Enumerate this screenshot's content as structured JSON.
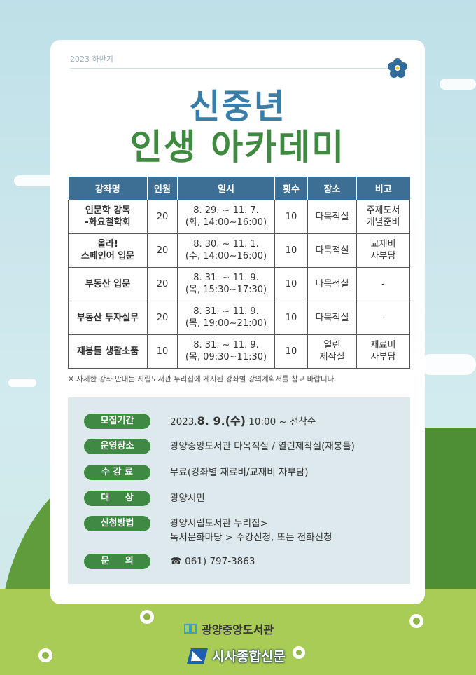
{
  "header": {
    "subtitle": "2023 하반기",
    "title_line1": "신중년",
    "title_line2": "인생 아카데미"
  },
  "colors": {
    "title_blue": "#3a7ea8",
    "title_green": "#3f8a40",
    "table_header": "#3d6f94",
    "pill_green": "#3e8a42",
    "info_bg": "#dde9ec"
  },
  "table": {
    "headers": [
      "강좌명",
      "인원",
      "일시",
      "횟수",
      "장소",
      "비고"
    ],
    "rows": [
      [
        "인문학 강독\n-화요철학회",
        "20",
        "8. 29. ~ 11. 7.\n(화, 14:00~16:00)",
        "10",
        "다목적실",
        "주제도서\n개별준비"
      ],
      [
        "올라!\n스페인어 입문",
        "20",
        "8. 30. ~ 11. 1.\n(수, 14:00~16:00)",
        "10",
        "다목적실",
        "교재비\n자부담"
      ],
      [
        "부동산 입문",
        "20",
        "8. 31. ~ 11. 9.\n(목, 15:30~17:30)",
        "10",
        "다목적실",
        "-"
      ],
      [
        "부동산 투자실무",
        "20",
        "8. 31. ~ 11. 9.\n(목, 19:00~21:00)",
        "10",
        "다목적실",
        "-"
      ],
      [
        "재봉틀 생활소품",
        "10",
        "8. 31. ~ 11. 9.\n(목, 09:30~11:30)",
        "10",
        "열린\n제작실",
        "재료비\n자부담"
      ]
    ],
    "note": "※ 자세한 강좌 안내는 시립도서관 누리집에 게시된 강좌별 강의계획서를 참고 바랍니다."
  },
  "info": {
    "period": {
      "label": "모집기간",
      "year": "2023.",
      "date": "8. 9.(수)",
      "rest": " 10:00 ~ 선착순"
    },
    "venue": {
      "label": "운영장소",
      "value": "광양중앙도서관 다목적실 / 열린제작실(재봉틀)"
    },
    "fee": {
      "label": "수 강 료",
      "value": "무료(강좌별 재료비/교재비 자부담)"
    },
    "target": {
      "label": "대     상",
      "value": "광양시민"
    },
    "apply": {
      "label": "신청방법",
      "value": "광양시립도서관 누리집>\n독서문화마당 > 수강신청, 또는 전화신청"
    },
    "contact": {
      "label": "문     의",
      "phone_icon": "☎",
      "value": "061) 797-3863"
    }
  },
  "footer": {
    "library": "광양중앙도서관",
    "newspaper": "시사종합신문"
  }
}
